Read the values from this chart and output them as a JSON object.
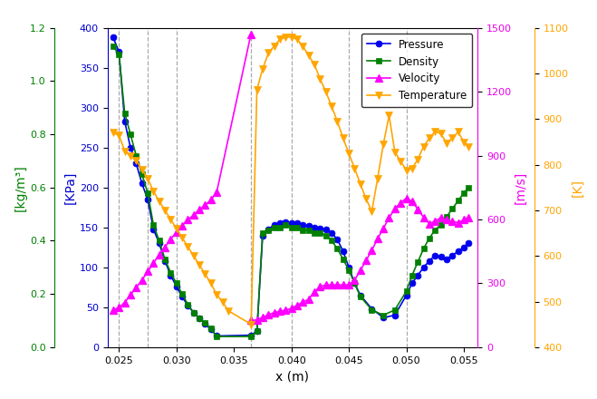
{
  "xlabel": "x (m)",
  "ylabel_left1": "[kg/m³]",
  "ylabel_left2": "[KPa]",
  "ylabel_right1": "[m/s]",
  "ylabel_right2": "[K]",
  "pressure_x": [
    0.0245,
    0.025,
    0.0255,
    0.026,
    0.0265,
    0.027,
    0.0275,
    0.028,
    0.0285,
    0.029,
    0.0295,
    0.03,
    0.0305,
    0.031,
    0.0315,
    0.032,
    0.0325,
    0.033,
    0.0335,
    0.0365,
    0.037,
    0.0375,
    0.038,
    0.0385,
    0.039,
    0.0395,
    0.04,
    0.0405,
    0.041,
    0.0415,
    0.042,
    0.0425,
    0.043,
    0.0435,
    0.044,
    0.0445,
    0.045,
    0.0455,
    0.046,
    0.047,
    0.048,
    0.049,
    0.05,
    0.0505,
    0.051,
    0.0515,
    0.052,
    0.0525,
    0.053,
    0.0535,
    0.054,
    0.0545,
    0.055,
    0.0554
  ],
  "pressure_y": [
    388,
    370,
    283,
    250,
    230,
    205,
    185,
    148,
    130,
    108,
    90,
    76,
    63,
    52,
    43,
    36,
    29,
    22,
    14,
    15,
    20,
    140,
    148,
    153,
    156,
    157,
    156,
    155,
    153,
    152,
    150,
    149,
    147,
    143,
    135,
    120,
    100,
    80,
    65,
    48,
    37,
    40,
    65,
    80,
    90,
    100,
    108,
    115,
    113,
    110,
    115,
    120,
    125,
    130
  ],
  "density_x": [
    0.0245,
    0.025,
    0.0255,
    0.026,
    0.0265,
    0.027,
    0.0275,
    0.028,
    0.0285,
    0.029,
    0.0295,
    0.03,
    0.0305,
    0.031,
    0.0315,
    0.032,
    0.0325,
    0.033,
    0.0335,
    0.0365,
    0.037,
    0.0375,
    0.038,
    0.0385,
    0.039,
    0.0395,
    0.04,
    0.0405,
    0.041,
    0.0415,
    0.042,
    0.0425,
    0.043,
    0.0435,
    0.044,
    0.0445,
    0.045,
    0.0455,
    0.046,
    0.047,
    0.048,
    0.049,
    0.05,
    0.0505,
    0.051,
    0.0515,
    0.052,
    0.0525,
    0.053,
    0.0535,
    0.054,
    0.0545,
    0.055,
    0.0554
  ],
  "density_y": [
    1.13,
    1.1,
    0.88,
    0.8,
    0.72,
    0.65,
    0.58,
    0.46,
    0.4,
    0.33,
    0.28,
    0.24,
    0.2,
    0.16,
    0.13,
    0.11,
    0.09,
    0.07,
    0.04,
    0.04,
    0.06,
    0.43,
    0.44,
    0.45,
    0.45,
    0.46,
    0.45,
    0.45,
    0.44,
    0.44,
    0.43,
    0.43,
    0.42,
    0.4,
    0.37,
    0.33,
    0.29,
    0.24,
    0.19,
    0.14,
    0.12,
    0.14,
    0.21,
    0.27,
    0.32,
    0.37,
    0.41,
    0.44,
    0.46,
    0.49,
    0.52,
    0.55,
    0.58,
    0.6
  ],
  "velocity_x": [
    0.0245,
    0.025,
    0.0255,
    0.026,
    0.0265,
    0.027,
    0.0275,
    0.028,
    0.0285,
    0.029,
    0.0295,
    0.03,
    0.0305,
    0.031,
    0.0315,
    0.032,
    0.0325,
    0.033,
    0.0335,
    0.03648,
    0.03652,
    0.037,
    0.0375,
    0.038,
    0.0385,
    0.039,
    0.0395,
    0.04,
    0.0405,
    0.041,
    0.0415,
    0.042,
    0.0425,
    0.043,
    0.0435,
    0.044,
    0.0445,
    0.045,
    0.0455,
    0.046,
    0.0465,
    0.047,
    0.0475,
    0.048,
    0.0485,
    0.049,
    0.0495,
    0.05,
    0.0505,
    0.051,
    0.0515,
    0.052,
    0.0525,
    0.053,
    0.0535,
    0.054,
    0.0545,
    0.055,
    0.0554
  ],
  "velocity_y": [
    175,
    185,
    210,
    245,
    280,
    315,
    355,
    395,
    435,
    470,
    508,
    540,
    572,
    598,
    622,
    645,
    668,
    692,
    728,
    1470,
    125,
    128,
    140,
    152,
    162,
    168,
    174,
    182,
    196,
    212,
    225,
    260,
    285,
    292,
    292,
    292,
    292,
    292,
    315,
    360,
    408,
    455,
    510,
    558,
    608,
    650,
    678,
    700,
    685,
    648,
    610,
    580,
    592,
    608,
    598,
    590,
    585,
    598,
    610
  ],
  "temperature_x": [
    0.0245,
    0.025,
    0.0255,
    0.026,
    0.0265,
    0.027,
    0.0275,
    0.028,
    0.0285,
    0.029,
    0.0295,
    0.03,
    0.0305,
    0.031,
    0.0315,
    0.032,
    0.0325,
    0.033,
    0.0335,
    0.034,
    0.0345,
    0.0365,
    0.037,
    0.0375,
    0.038,
    0.0385,
    0.039,
    0.0395,
    0.04,
    0.0405,
    0.041,
    0.0415,
    0.042,
    0.0425,
    0.043,
    0.0435,
    0.044,
    0.0445,
    0.045,
    0.0455,
    0.046,
    0.0465,
    0.047,
    0.0475,
    0.048,
    0.0485,
    0.049,
    0.0495,
    0.05,
    0.0505,
    0.051,
    0.0515,
    0.052,
    0.0525,
    0.053,
    0.0535,
    0.054,
    0.0545,
    0.055,
    0.0554
  ],
  "temperature_y": [
    870,
    865,
    830,
    820,
    810,
    790,
    770,
    742,
    720,
    700,
    680,
    660,
    640,
    620,
    600,
    580,
    560,
    540,
    515,
    500,
    480,
    450,
    965,
    1010,
    1045,
    1060,
    1075,
    1080,
    1080,
    1075,
    1060,
    1040,
    1020,
    988,
    960,
    928,
    895,
    858,
    825,
    792,
    758,
    725,
    698,
    770,
    845,
    908,
    828,
    808,
    788,
    792,
    812,
    840,
    858,
    873,
    868,
    848,
    858,
    872,
    850,
    840
  ],
  "dashed_vlines": [
    0.025,
    0.0275,
    0.03,
    0.0365,
    0.04,
    0.045,
    0.05
  ],
  "pressure_color": "#0000ee",
  "density_color": "#008000",
  "velocity_color": "#ff00ff",
  "temperature_color": "#ffa500",
  "left1_color": "#008000",
  "left2_color": "#0000cd",
  "right1_color": "#ee00ee",
  "right2_color": "#ffa500",
  "xlim": [
    0.024,
    0.0562
  ],
  "ylim_pressure": [
    0,
    400
  ],
  "ylim_density": [
    0.0,
    1.2
  ],
  "ylim_velocity": [
    0,
    1500
  ],
  "ylim_temperature": [
    400,
    1100
  ],
  "fig_width": 6.59,
  "fig_height": 4.4,
  "dpi": 100
}
